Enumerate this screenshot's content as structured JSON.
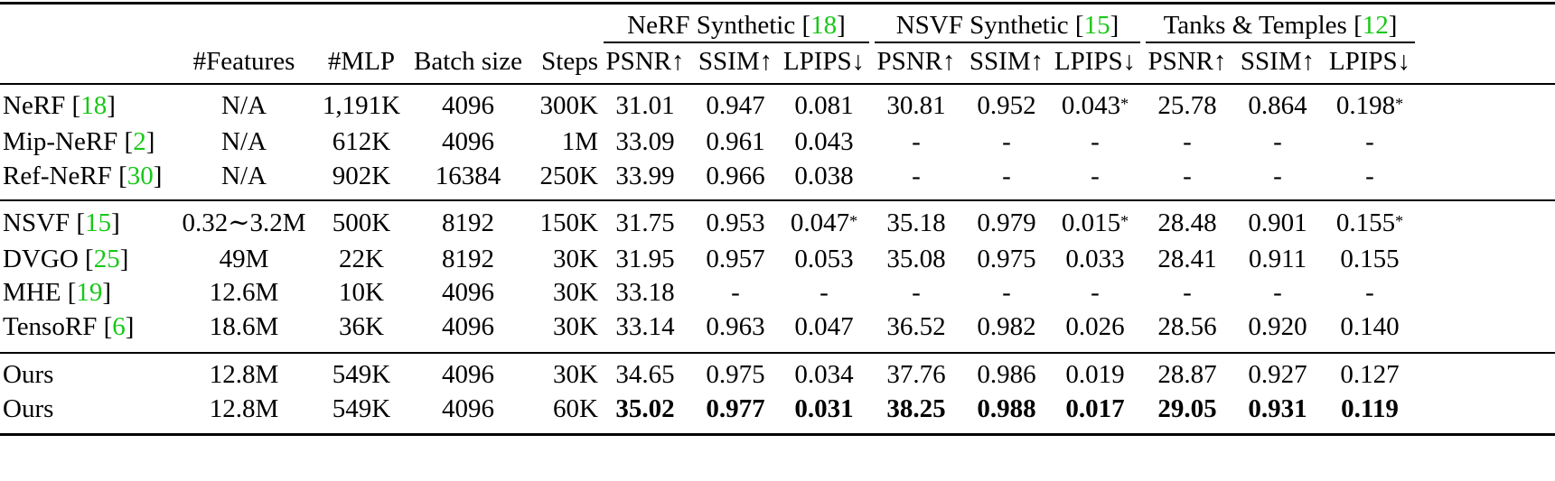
{
  "table": {
    "group_headers": [
      {
        "name": "NeRF Synthetic ",
        "cite": "18"
      },
      {
        "name": "NSVF Synthetic ",
        "cite": "15"
      },
      {
        "name": "Tanks & Temples ",
        "cite": "12"
      }
    ],
    "column_headers": [
      "#Features",
      "#MLP",
      "Batch size",
      "Steps",
      "PSNR↑",
      "SSIM↑",
      "LPIPS↓",
      "PSNR↑",
      "SSIM↑",
      "LPIPS↓",
      "PSNR↑",
      "SSIM↑",
      "LPIPS↓"
    ],
    "rows": [
      {
        "method": "NeRF ",
        "cite": "18",
        "cells": [
          "N/A",
          "1,191K",
          "4096",
          "300K",
          "31.01",
          "0.947",
          "0.081",
          "30.81",
          "0.952",
          "0.043*",
          "25.78",
          "0.864",
          "0.198*"
        ]
      },
      {
        "method": "Mip-NeRF ",
        "cite": "2",
        "cells": [
          "N/A",
          "612K",
          "4096",
          "1M",
          "33.09",
          "0.961",
          "0.043",
          "-",
          "-",
          "-",
          "-",
          "-",
          "-"
        ]
      },
      {
        "method": "Ref-NeRF ",
        "cite": "30",
        "cells": [
          "N/A",
          "902K",
          "16384",
          "250K",
          "33.99",
          "0.966",
          "0.038",
          "-",
          "-",
          "-",
          "-",
          "-",
          "-"
        ]
      },
      {
        "method": "NSVF ",
        "cite": "15",
        "cells": [
          "0.32∼3.2M",
          "500K",
          "8192",
          "150K",
          "31.75",
          "0.953",
          "0.047*",
          "35.18",
          "0.979",
          "0.015*",
          "28.48",
          "0.901",
          "0.155*"
        ]
      },
      {
        "method": "DVGO ",
        "cite": "25",
        "cells": [
          "49M",
          "22K",
          "8192",
          "30K",
          "31.95",
          "0.957",
          "0.053",
          "35.08",
          "0.975",
          "0.033",
          "28.41",
          "0.911",
          "0.155"
        ]
      },
      {
        "method": "MHE ",
        "cite": "19",
        "cells": [
          "12.6M",
          "10K",
          "4096",
          "30K",
          "33.18",
          "-",
          "-",
          "-",
          "-",
          "-",
          "-",
          "-",
          "-"
        ]
      },
      {
        "method": "TensoRF ",
        "cite": "6",
        "cells": [
          "18.6M",
          "36K",
          "4096",
          "30K",
          "33.14",
          "0.963",
          "0.047",
          "36.52",
          "0.982",
          "0.026",
          "28.56",
          "0.920",
          "0.140"
        ]
      },
      {
        "method": "Ours",
        "cite": "",
        "cells": [
          "12.8M",
          "549K",
          "4096",
          "30K",
          "34.65",
          "0.975",
          "0.034",
          "37.76",
          "0.986",
          "0.019",
          "28.87",
          "0.927",
          "0.127"
        ]
      },
      {
        "method": "Ours",
        "cite": "",
        "bold_from": 4,
        "cells": [
          "12.8M",
          "549K",
          "4096",
          "60K",
          "35.02",
          "0.977",
          "0.031",
          "38.25",
          "0.988",
          "0.017",
          "29.05",
          "0.931",
          "0.119"
        ]
      }
    ]
  }
}
